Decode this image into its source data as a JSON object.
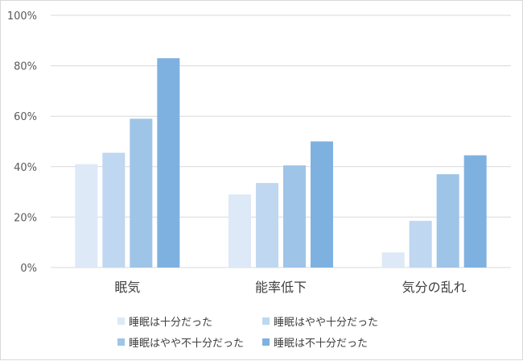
{
  "colors": {
    "series": [
      "#dde9f7",
      "#bfd7f0",
      "#9ec4e8",
      "#7eb1e0"
    ],
    "grid": "#d9d9d9"
  },
  "chart_data": {
    "type": "bar",
    "categories": [
      "眠気",
      "能率低下",
      "気分の乱れ"
    ],
    "series": [
      {
        "name": "睡眠は十分だった",
        "values": [
          41,
          29,
          6
        ]
      },
      {
        "name": "睡眠はやや十分だった",
        "values": [
          45.5,
          33.5,
          18.5
        ]
      },
      {
        "name": "睡眠はやや不十分だった",
        "values": [
          59,
          40.5,
          37
        ]
      },
      {
        "name": "睡眠は不十分だった",
        "values": [
          83,
          50,
          44.5
        ]
      }
    ],
    "yticks": [
      "0%",
      "20%",
      "40%",
      "60%",
      "80%",
      "100%"
    ],
    "ylim": [
      0,
      100
    ],
    "grid": true,
    "legend_position": "bottom"
  }
}
